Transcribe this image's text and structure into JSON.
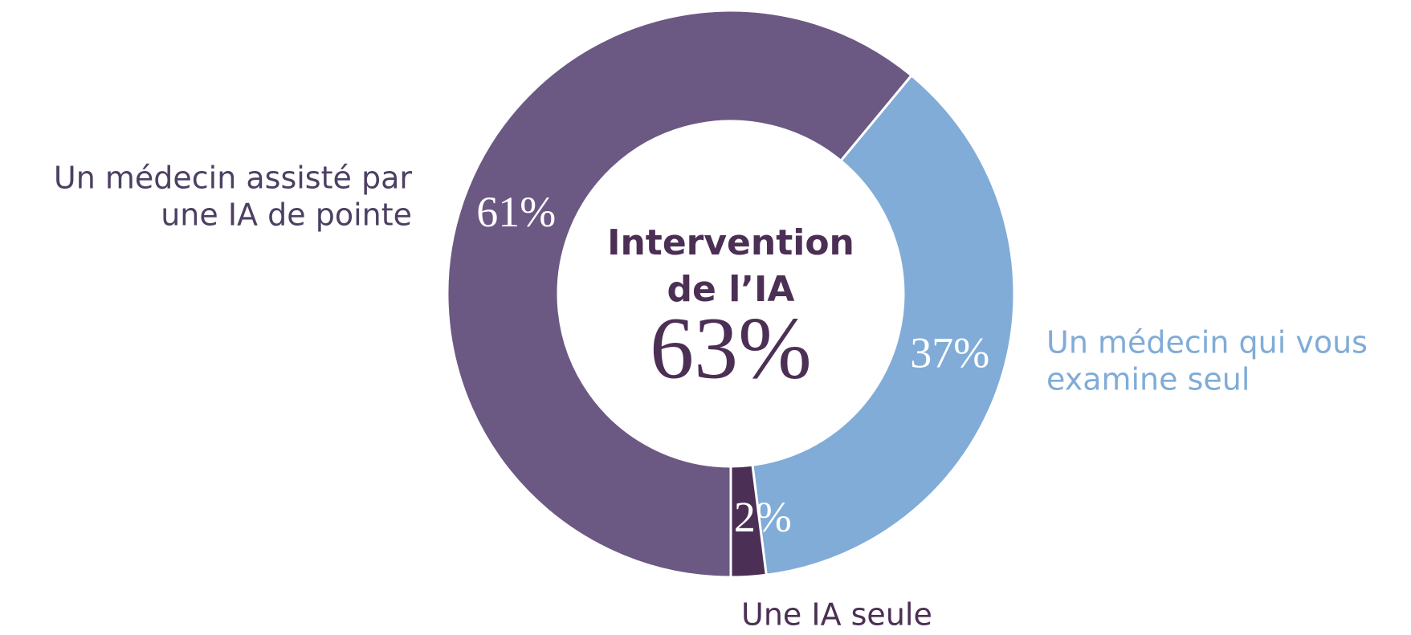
{
  "chart_data": {
    "type": "donut",
    "center_title": [
      "Intervention",
      "de l’IA"
    ],
    "center_value": {
      "value": 63,
      "label": "63%"
    },
    "categories": [
      [
        "Un médecin assisté par",
        "une IA de pointe"
      ],
      [
        "Un médecin qui vous",
        "examine seul"
      ],
      [
        "Une IA seule"
      ]
    ],
    "values": [
      61,
      37,
      2
    ],
    "value_labels": [
      "61%",
      "37%",
      "2%"
    ],
    "colors": [
      "#6b5883",
      "#80acd7",
      "#4c2f55"
    ],
    "label_colors": [
      "#4d4063",
      "#80acd7",
      "#4c2f55"
    ]
  }
}
